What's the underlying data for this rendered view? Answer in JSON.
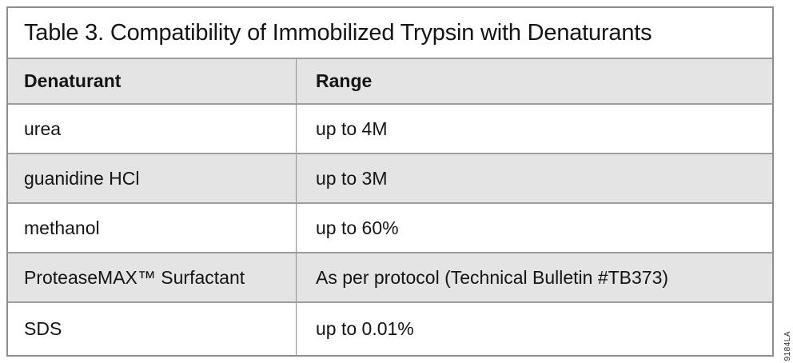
{
  "figure": {
    "title": "Table 3. Compatibility of Immobilized Trypsin with Denaturants",
    "side_code": "9184LA"
  },
  "table": {
    "headers": [
      "Denaturant",
      "Range"
    ],
    "rows": [
      [
        "urea",
        "up to 4M"
      ],
      [
        "guanidine HCl",
        "up to 3M"
      ],
      [
        "methanol",
        "up to 60%"
      ],
      [
        "ProteaseMAX™ Surfactant",
        "As per protocol (Technical Bulletin #TB373)"
      ],
      [
        "SDS",
        "up to 0.01%"
      ]
    ]
  },
  "colors": {
    "row_shade": "#e4e4e4",
    "grid_line": "#9d9d9d",
    "outer_border": "#8e8e8e",
    "text": "#141414"
  }
}
